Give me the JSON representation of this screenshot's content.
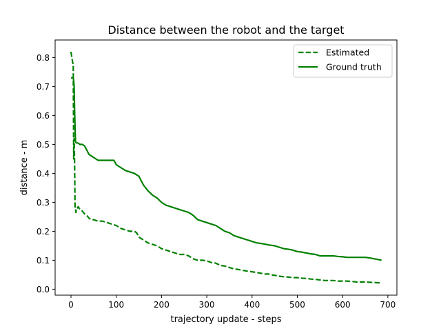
{
  "chart_data": {
    "type": "line",
    "title": "Distance between the robot and the target",
    "xlabel": "trajectory update - steps",
    "ylabel": "distance - m",
    "xlim": [
      -35,
      720
    ],
    "ylim": [
      -0.0205,
      0.8605
    ],
    "xticks": [
      0,
      100,
      200,
      300,
      400,
      500,
      600,
      700
    ],
    "yticks": [
      0.0,
      0.1,
      0.2,
      0.3,
      0.4,
      0.5,
      0.6,
      0.7,
      0.8
    ],
    "xtick_labels": [
      "0",
      "100",
      "200",
      "300",
      "400",
      "500",
      "600",
      "700"
    ],
    "ytick_labels": [
      "0.0",
      "0.1",
      "0.2",
      "0.3",
      "0.4",
      "0.5",
      "0.6",
      "0.7",
      "0.8"
    ],
    "grid": false,
    "legend_position": "top-right",
    "series": [
      {
        "name": "Estimated",
        "color": "#008000",
        "style": "dashed",
        "x": [
          0,
          3,
          4,
          5,
          6,
          7,
          8,
          9,
          10,
          11,
          12,
          14,
          16,
          18,
          20,
          25,
          30,
          35,
          40,
          45,
          50,
          60,
          70,
          80,
          90,
          100,
          110,
          120,
          130,
          140,
          145,
          150,
          160,
          170,
          180,
          190,
          200,
          210,
          220,
          230,
          240,
          250,
          260,
          270,
          280,
          290,
          300,
          310,
          320,
          330,
          340,
          350,
          360,
          370,
          380,
          390,
          400,
          410,
          420,
          430,
          435,
          440,
          450,
          460,
          470,
          480,
          490,
          500,
          510,
          520,
          530,
          540,
          550,
          560,
          570,
          580,
          590,
          600,
          610,
          620,
          630,
          640,
          650,
          660,
          670,
          680,
          686
        ],
        "y": [
          0.82,
          0.79,
          0.78,
          0.78,
          0.45,
          0.52,
          0.44,
          0.28,
          0.28,
          0.265,
          0.275,
          0.28,
          0.285,
          0.28,
          0.275,
          0.27,
          0.26,
          0.255,
          0.245,
          0.24,
          0.24,
          0.235,
          0.235,
          0.23,
          0.225,
          0.22,
          0.21,
          0.205,
          0.2,
          0.2,
          0.195,
          0.18,
          0.17,
          0.16,
          0.155,
          0.15,
          0.14,
          0.135,
          0.13,
          0.125,
          0.12,
          0.12,
          0.115,
          0.105,
          0.1,
          0.1,
          0.098,
          0.092,
          0.09,
          0.082,
          0.08,
          0.075,
          0.07,
          0.068,
          0.065,
          0.062,
          0.06,
          0.058,
          0.055,
          0.052,
          0.053,
          0.05,
          0.048,
          0.045,
          0.043,
          0.042,
          0.04,
          0.04,
          0.038,
          0.037,
          0.035,
          0.034,
          0.032,
          0.03,
          0.03,
          0.03,
          0.028,
          0.028,
          0.028,
          0.027,
          0.025,
          0.025,
          0.025,
          0.024,
          0.023,
          0.022,
          0.022
        ]
      },
      {
        "name": "Ground truth",
        "color": "#008000",
        "style": "solid",
        "x": [
          0,
          5,
          6,
          7,
          8,
          9,
          10,
          12,
          15,
          20,
          25,
          30,
          35,
          40,
          45,
          50,
          60,
          70,
          80,
          90,
          95,
          100,
          110,
          120,
          130,
          140,
          150,
          160,
          170,
          180,
          190,
          200,
          210,
          220,
          230,
          240,
          250,
          260,
          270,
          280,
          290,
          300,
          310,
          320,
          330,
          340,
          350,
          360,
          370,
          380,
          390,
          400,
          410,
          420,
          430,
          440,
          450,
          460,
          470,
          480,
          490,
          500,
          510,
          520,
          530,
          540,
          550,
          560,
          570,
          580,
          590,
          600,
          610,
          620,
          630,
          640,
          650,
          660,
          670,
          680,
          686
        ],
        "y": [
          0.73,
          0.73,
          0.72,
          0.7,
          0.62,
          0.56,
          0.51,
          0.505,
          0.505,
          0.5,
          0.5,
          0.495,
          0.48,
          0.465,
          0.46,
          0.455,
          0.445,
          0.445,
          0.445,
          0.445,
          0.445,
          0.43,
          0.42,
          0.41,
          0.405,
          0.4,
          0.39,
          0.36,
          0.34,
          0.325,
          0.315,
          0.3,
          0.29,
          0.285,
          0.28,
          0.275,
          0.27,
          0.265,
          0.255,
          0.24,
          0.235,
          0.23,
          0.225,
          0.22,
          0.21,
          0.2,
          0.195,
          0.185,
          0.18,
          0.175,
          0.17,
          0.165,
          0.16,
          0.158,
          0.155,
          0.152,
          0.15,
          0.145,
          0.14,
          0.138,
          0.135,
          0.13,
          0.128,
          0.125,
          0.122,
          0.12,
          0.115,
          0.115,
          0.115,
          0.115,
          0.113,
          0.112,
          0.11,
          0.11,
          0.11,
          0.11,
          0.11,
          0.108,
          0.105,
          0.102,
          0.1
        ]
      }
    ]
  }
}
